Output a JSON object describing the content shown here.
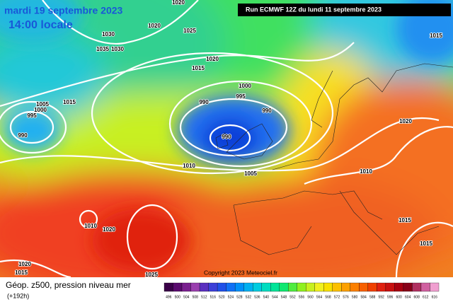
{
  "header": {
    "date": "mardi 19 septembre 2023",
    "time": "14:00 locale",
    "run": "Run ECMWF 12Z du lundi 11 septembre 2023"
  },
  "copyright": "Copyright 2023 Meteociel.fr",
  "legend": {
    "title": "Géop. z500, pression niveau mer",
    "lead": "(+192h)",
    "scale_labels": [
      "496",
      "500",
      "504",
      "508",
      "512",
      "516",
      "520",
      "524",
      "528",
      "532",
      "536",
      "540",
      "544",
      "548",
      "552",
      "556",
      "560",
      "564",
      "568",
      "572",
      "576",
      "580",
      "584",
      "588",
      "592",
      "596",
      "600",
      "604",
      "608",
      "612",
      "616"
    ],
    "scale_colors": [
      "#3a0048",
      "#5a0a6e",
      "#7a1f8f",
      "#9a3fae",
      "#5a2fbf",
      "#3c3fd8",
      "#2050e8",
      "#1070f5",
      "#0090f8",
      "#00b0f0",
      "#00cce0",
      "#00dcc0",
      "#00e498",
      "#10e870",
      "#50ec40",
      "#90f020",
      "#c8f020",
      "#f0f020",
      "#f8e000",
      "#fcc000",
      "#fca000",
      "#fc8000",
      "#f86000",
      "#f04000",
      "#e02010",
      "#c81010",
      "#a80010",
      "#880018",
      "#b03060",
      "#d060a0",
      "#f0a0d0"
    ]
  },
  "isobars": [
    "1020",
    "1020",
    "1025",
    "1030",
    "1035",
    "1030",
    "1020",
    "1015",
    "1000",
    "995",
    "990",
    "990",
    "990",
    "1005",
    "1000",
    "995",
    "1015",
    "990",
    "1010",
    "1005",
    "1010",
    "1020",
    "1015",
    "1010",
    "1020",
    "1025",
    "1020",
    "1015",
    "1015",
    "1015"
  ]
}
